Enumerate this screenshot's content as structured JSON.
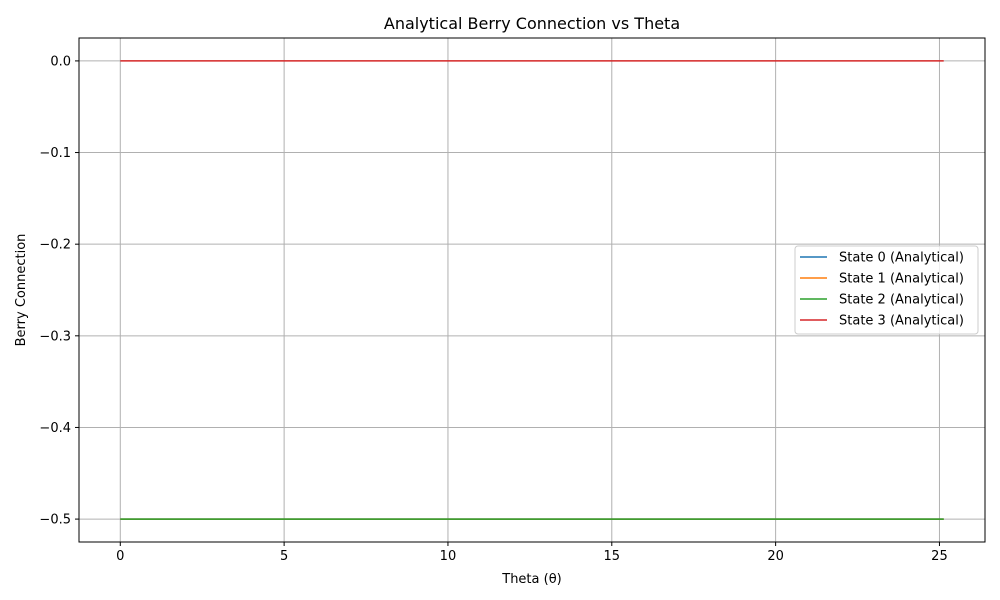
{
  "chart_data": {
    "type": "line",
    "title": "Analytical Berry Connection vs Theta",
    "xlabel": "Theta (θ)",
    "ylabel": "Berry Connection",
    "xlim": [
      -1.26,
      26.39
    ],
    "ylim": [
      -0.525,
      0.025
    ],
    "xticks": [
      0,
      5,
      10,
      15,
      20,
      25
    ],
    "xtick_labels": [
      "0",
      "5",
      "10",
      "15",
      "20",
      "25"
    ],
    "yticks": [
      0.0,
      -0.1,
      -0.2,
      -0.3,
      -0.4,
      -0.5
    ],
    "ytick_labels": [
      "0.0",
      "−0.1",
      "−0.2",
      "−0.3",
      "−0.4",
      "−0.5"
    ],
    "grid": true,
    "legend_position": "center-right",
    "series": [
      {
        "name": "State 0 (Analytical)",
        "color": "#1f77b4",
        "x": [
          0,
          25.13
        ],
        "y": [
          -0.5,
          -0.5
        ]
      },
      {
        "name": "State 1 (Analytical)",
        "color": "#ff7f0e",
        "x": [
          0,
          25.13
        ],
        "y": [
          -0.5,
          -0.5
        ]
      },
      {
        "name": "State 2 (Analytical)",
        "color": "#2ca02c",
        "x": [
          0,
          25.13
        ],
        "y": [
          -0.5,
          -0.5
        ]
      },
      {
        "name": "State 3 (Analytical)",
        "color": "#d62728",
        "x": [
          0,
          25.13
        ],
        "y": [
          0.0,
          0.0
        ]
      }
    ]
  }
}
